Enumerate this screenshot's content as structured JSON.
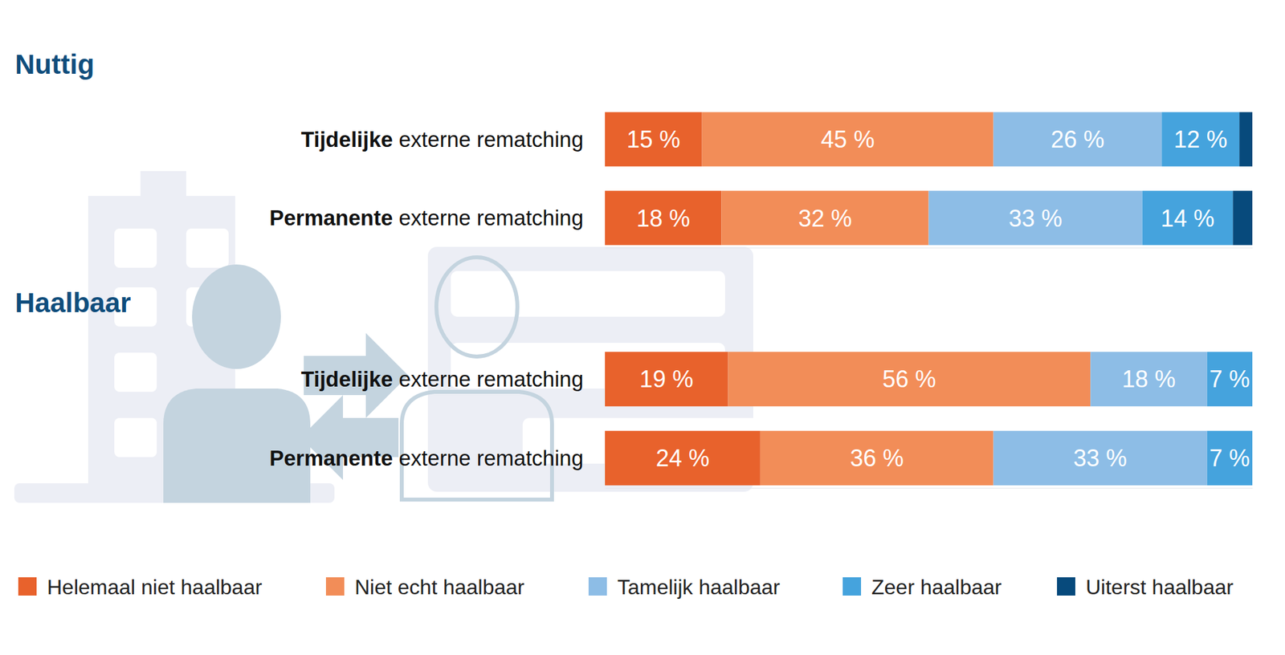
{
  "chart_data": [
    {
      "type": "bar",
      "title": "Nuttig",
      "orientation": "horizontal",
      "stacked": true,
      "data_labels": true,
      "tick_labels": false,
      "legend": "bottom",
      "xlim": [
        0,
        100
      ],
      "xticks": [],
      "categories": [
        "Tijdelijke externe rematching",
        "Permanente externe rematching"
      ],
      "series": [
        {
          "name": "Helemaal niet haalbaar",
          "color": "#e8622c",
          "values": [
            15,
            18
          ],
          "value_labels": [
            "15 %",
            "18 %"
          ]
        },
        {
          "name": "Niet echt haalbaar",
          "color": "#f28d58",
          "values": [
            45,
            32
          ],
          "value_labels": [
            "45 %",
            "32 %"
          ]
        },
        {
          "name": "Tamelijk haalbaar",
          "color": "#8dbde6",
          "values": [
            26,
            33
          ],
          "value_labels": [
            "26 %",
            "33 %"
          ]
        },
        {
          "name": "Zeer haalbaar",
          "color": "#45a3dd",
          "values": [
            12,
            14
          ],
          "value_labels": [
            "12 %",
            "14 %"
          ]
        },
        {
          "name": "Uiterst haalbaar",
          "color": "#074a7c",
          "values": [
            2,
            3
          ],
          "value_labels": [
            null,
            null
          ]
        }
      ]
    },
    {
      "type": "bar",
      "title": "Haalbaar",
      "orientation": "horizontal",
      "stacked": true,
      "data_labels": true,
      "tick_labels": false,
      "xlim": [
        0,
        100
      ],
      "xticks": [],
      "categories": [
        "Tijdelijke externe rematching",
        "Permanente externe rematching"
      ],
      "series": [
        {
          "color": "#e8622c",
          "values": [
            19,
            24
          ],
          "value_labels": [
            "19 %",
            "24 %"
          ]
        },
        {
          "color": "#f28d58",
          "values": [
            56,
            36
          ],
          "value_labels": [
            "56 %",
            "36 %"
          ]
        },
        {
          "color": "#8dbde6",
          "values": [
            18,
            33
          ],
          "value_labels": [
            "18 %",
            "33 %"
          ]
        },
        {
          "color": "#45a3dd",
          "values": [
            7,
            7
          ],
          "value_labels": [
            "7 %",
            "7 %"
          ]
        },
        {
          "color": "#074a7c",
          "values": [
            0,
            0
          ],
          "value_labels": [
            null,
            null
          ]
        }
      ]
    }
  ]
}
